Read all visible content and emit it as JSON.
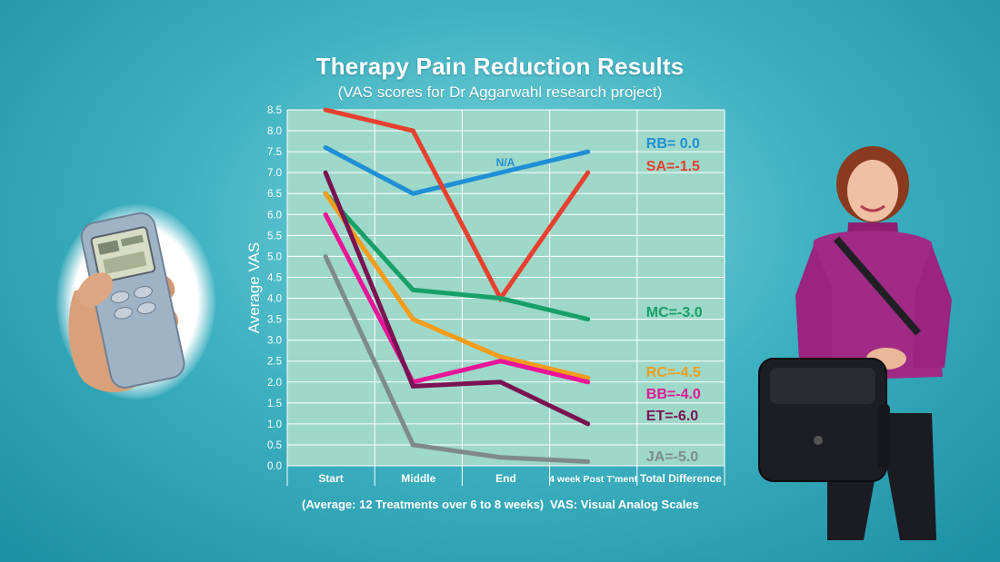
{
  "chart_data": {
    "type": "line",
    "title": "Therapy Pain Reduction Results",
    "subtitle": "(VAS scores for Dr Aggarwahl research project)",
    "ylabel": "Average VAS",
    "xlabel": "",
    "categories": [
      "Start",
      "Middle",
      "End",
      "4 week Post T'ment"
    ],
    "extra_column_label": "Total Difference",
    "ylim": [
      0,
      8.5
    ],
    "ytick_step": 0.5,
    "yticks": [
      "0.0",
      "0.5",
      "1.0",
      "1.5",
      "2.0",
      "2.5",
      "3.0",
      "3.5",
      "4.0",
      "4.5",
      "5.0",
      "5.5",
      "6.0",
      "6.5",
      "7.0",
      "7.5",
      "8.0",
      "8.5"
    ],
    "grid": true,
    "annotation": "N/A",
    "series": [
      {
        "name": "RB",
        "label": "RB= 0.0",
        "color": "#1f8fd6",
        "values": [
          7.6,
          6.5,
          7.0,
          7.5
        ]
      },
      {
        "name": "SA",
        "label": "SA=-1.5",
        "color": "#e8402e",
        "values": [
          8.5,
          8.0,
          4.0,
          7.0
        ]
      },
      {
        "name": "MC",
        "label": "MC=-3.0",
        "color": "#17a068",
        "values": [
          6.5,
          4.2,
          4.0,
          3.5
        ]
      },
      {
        "name": "RC",
        "label": "RC=-4.5",
        "color": "#f39c1a",
        "values": [
          6.5,
          3.5,
          2.6,
          2.1
        ]
      },
      {
        "name": "BB",
        "label": "BB=-4.0",
        "color": "#e8149a",
        "values": [
          6.0,
          2.0,
          2.5,
          2.0
        ]
      },
      {
        "name": "ET",
        "label": "ET=-6.0",
        "color": "#7a1352",
        "values": [
          7.0,
          1.9,
          2.0,
          1.0
        ]
      },
      {
        "name": "JA",
        "label": "JA=-5.0",
        "color": "#808a8a",
        "values": [
          5.0,
          0.5,
          0.2,
          0.1
        ]
      }
    ]
  },
  "footer": {
    "note_left": "(Average: 12 Treatments over 6 to 8 weeks)",
    "note_right": "VAS: Visual Analog Scales"
  },
  "colors": {
    "plot_background": "#9dd8c8",
    "grid": "#ffffff",
    "page_background": "#3fb2c2"
  },
  "images": {
    "left": "hand-held-tens-device",
    "right": "woman-with-shoulder-bag"
  }
}
